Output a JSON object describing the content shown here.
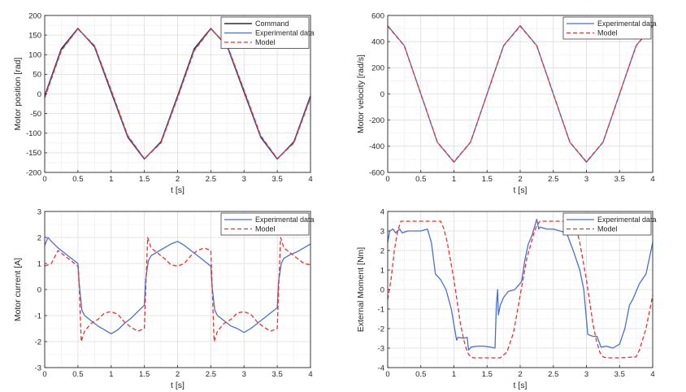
{
  "chart_data": [
    {
      "type": "line",
      "ylabel": "Motor position [rad]",
      "xlabel": "t [s]",
      "xlim": [
        0,
        4
      ],
      "ylim": [
        -200,
        200
      ],
      "xticks": [
        "0",
        "0.5",
        "1",
        "1.5",
        "2",
        "2.5",
        "3",
        "3.5",
        "4"
      ],
      "yticks": [
        "-200",
        "-150",
        "-100",
        "-50",
        "0",
        "50",
        "100",
        "150",
        "200"
      ],
      "grid": true,
      "legend_position": "top-right",
      "series": [
        {
          "name": "Command",
          "color": "#000000",
          "dash": "solid",
          "x": [
            0,
            0.25,
            0.5,
            0.75,
            1.0,
            1.25,
            1.5,
            1.75,
            2.0,
            2.25,
            2.5,
            2.75,
            3.0,
            3.25,
            3.5,
            3.75,
            4.0
          ],
          "y": [
            -5,
            115,
            167,
            120,
            5,
            -110,
            -166,
            -122,
            -5,
            115,
            167,
            120,
            5,
            -110,
            -166,
            -122,
            -5
          ]
        },
        {
          "name": "Experimental data",
          "color": "#4a6fd0",
          "dash": "solid",
          "x": [
            0,
            0.25,
            0.5,
            0.75,
            1.0,
            1.25,
            1.5,
            1.75,
            2.0,
            2.25,
            2.5,
            2.75,
            3.0,
            3.25,
            3.5,
            3.75,
            4.0
          ],
          "y": [
            -8,
            112,
            166,
            122,
            8,
            -108,
            -165,
            -124,
            -8,
            112,
            166,
            122,
            8,
            -108,
            -165,
            -124,
            -8
          ]
        },
        {
          "name": "Model",
          "color": "#e8312a",
          "dash": "dashed",
          "x": [
            0,
            0.25,
            0.5,
            0.75,
            1.0,
            1.25,
            1.5,
            1.75,
            2.0,
            2.25,
            2.5,
            2.75,
            3.0,
            3.25,
            3.5,
            3.75,
            4.0
          ],
          "y": [
            -10,
            110,
            166,
            123,
            10,
            -106,
            -165,
            -125,
            -10,
            110,
            166,
            123,
            10,
            -106,
            -165,
            -125,
            -10
          ]
        }
      ]
    },
    {
      "type": "line",
      "ylabel": "Motor velocity [rad/s]",
      "xlabel": "t [s]",
      "xlim": [
        0,
        4
      ],
      "ylim": [
        -600,
        600
      ],
      "xticks": [
        "0",
        "0.5",
        "1",
        "1.5",
        "2",
        "2.5",
        "3",
        "3.5",
        "4"
      ],
      "yticks": [
        "-600",
        "-400",
        "-200",
        "0",
        "200",
        "400",
        "600"
      ],
      "grid": true,
      "legend_position": "top-right",
      "series": [
        {
          "name": "Experimental data",
          "color": "#4a6fd0",
          "dash": "solid",
          "x": [
            0,
            0.25,
            0.5,
            0.75,
            1.0,
            1.25,
            1.5,
            1.75,
            2.0,
            2.25,
            2.5,
            2.75,
            3.0,
            3.25,
            3.5,
            3.75,
            4.0
          ],
          "y": [
            522,
            370,
            0,
            -370,
            -522,
            -370,
            0,
            370,
            522,
            370,
            0,
            -370,
            -522,
            -370,
            0,
            370,
            522
          ]
        },
        {
          "name": "Model",
          "color": "#e8312a",
          "dash": "dashed",
          "x": [
            0,
            0.25,
            0.5,
            0.75,
            1.0,
            1.25,
            1.5,
            1.75,
            2.0,
            2.25,
            2.5,
            2.75,
            3.0,
            3.25,
            3.5,
            3.75,
            4.0
          ],
          "y": [
            518,
            368,
            0,
            -368,
            -518,
            -368,
            0,
            368,
            518,
            368,
            0,
            -368,
            -518,
            -368,
            0,
            368,
            518
          ]
        }
      ]
    },
    {
      "type": "line",
      "ylabel": "Motor current [A]",
      "xlabel": "t [s]",
      "xlim": [
        0,
        4
      ],
      "ylim": [
        -3,
        3
      ],
      "xticks": [
        "0",
        "0.5",
        "1",
        "1.5",
        "2",
        "2.5",
        "3",
        "3.5",
        "4"
      ],
      "yticks": [
        "-3",
        "-2",
        "-1",
        "0",
        "1",
        "2",
        "3"
      ],
      "grid": true,
      "legend_position": "top-right",
      "series": [
        {
          "name": "Experimental data",
          "color": "#4a6fd0",
          "dash": "solid",
          "x": [
            0,
            0.05,
            0.1,
            0.2,
            0.3,
            0.4,
            0.5,
            0.52,
            0.56,
            0.6,
            0.7,
            0.8,
            0.9,
            1.0,
            1.1,
            1.2,
            1.3,
            1.4,
            1.5,
            1.52,
            1.56,
            1.6,
            1.7,
            1.8,
            1.9,
            2.0,
            2.1,
            2.2,
            2.3,
            2.4,
            2.5,
            2.52,
            2.56,
            2.6,
            2.7,
            2.8,
            2.9,
            3.0,
            3.1,
            3.2,
            3.3,
            3.4,
            3.5,
            3.52,
            3.56,
            3.6,
            3.7,
            3.8,
            3.9,
            4.0
          ],
          "y": [
            1.7,
            2.0,
            1.85,
            1.6,
            1.4,
            1.2,
            1.0,
            0.2,
            -0.8,
            -1.0,
            -1.2,
            -1.4,
            -1.55,
            -1.7,
            -1.55,
            -1.3,
            -1.1,
            -0.85,
            -0.6,
            0.4,
            1.1,
            1.3,
            1.45,
            1.6,
            1.75,
            1.85,
            1.7,
            1.5,
            1.3,
            1.1,
            0.9,
            0.1,
            -0.8,
            -1.0,
            -1.2,
            -1.4,
            -1.5,
            -1.65,
            -1.5,
            -1.3,
            -1.1,
            -0.9,
            -0.7,
            0.3,
            1.0,
            1.2,
            1.35,
            1.45,
            1.6,
            1.75
          ]
        },
        {
          "name": "Model",
          "color": "#e8312a",
          "dash": "dashed",
          "x": [
            0,
            0.1,
            0.2,
            0.3,
            0.4,
            0.5,
            0.52,
            0.55,
            0.6,
            0.7,
            0.8,
            0.9,
            1.0,
            1.1,
            1.2,
            1.3,
            1.4,
            1.5,
            1.52,
            1.55,
            1.6,
            1.7,
            1.8,
            1.9,
            2.0,
            2.1,
            2.2,
            2.3,
            2.4,
            2.5,
            2.52,
            2.55,
            2.6,
            2.7,
            2.8,
            2.9,
            3.0,
            3.1,
            3.2,
            3.3,
            3.4,
            3.5,
            3.52,
            3.55,
            3.6,
            3.7,
            3.8,
            3.9,
            4.0
          ],
          "y": [
            0.9,
            1.0,
            1.5,
            1.3,
            1.1,
            0.9,
            0.1,
            -2.0,
            -1.6,
            -1.3,
            -1.15,
            -0.9,
            -0.85,
            -0.95,
            -1.25,
            -1.45,
            -1.6,
            -1.5,
            0.0,
            2.0,
            1.6,
            1.4,
            1.2,
            0.95,
            0.9,
            1.0,
            1.3,
            1.5,
            1.6,
            1.5,
            0.1,
            -2.0,
            -1.6,
            -1.3,
            -1.15,
            -0.9,
            -0.85,
            -0.95,
            -1.25,
            -1.45,
            -1.6,
            -1.5,
            0.0,
            2.0,
            1.6,
            1.4,
            1.2,
            1.0,
            0.95
          ]
        }
      ]
    },
    {
      "type": "line",
      "ylabel": "External Moment [Nm]",
      "xlabel": "t [s]",
      "xlim": [
        0,
        4
      ],
      "ylim": [
        -4,
        4
      ],
      "xticks": [
        "0",
        "0.5",
        "1",
        "1.5",
        "2",
        "2.5",
        "3",
        "3.5",
        "4"
      ],
      "yticks": [
        "-4",
        "-3",
        "-2",
        "-1",
        "0",
        "1",
        "2",
        "3",
        "4"
      ],
      "grid": true,
      "legend_position": "top-right",
      "series": [
        {
          "name": "Experimental data",
          "color": "#4a6fd0",
          "dash": "solid",
          "x": [
            0,
            0.03,
            0.08,
            0.12,
            0.18,
            0.22,
            0.3,
            0.4,
            0.5,
            0.6,
            0.66,
            0.72,
            0.8,
            0.88,
            0.96,
            1.04,
            1.06,
            1.15,
            1.2,
            1.22,
            1.26,
            1.35,
            1.45,
            1.55,
            1.62,
            1.64,
            1.66,
            1.67,
            1.7,
            1.75,
            1.82,
            1.92,
            2.02,
            2.07,
            2.12,
            2.18,
            2.25,
            2.28,
            2.3,
            2.4,
            2.5,
            2.6,
            2.7,
            2.8,
            2.9,
            2.96,
            3.02,
            3.1,
            3.16,
            3.22,
            3.3,
            3.4,
            3.5,
            3.58,
            3.65,
            3.7,
            3.8,
            3.9,
            4.0
          ],
          "y": [
            2.4,
            3.0,
            3.1,
            2.9,
            3.1,
            2.9,
            3.0,
            3.0,
            3.0,
            3.1,
            2.4,
            0.8,
            0.5,
            0.0,
            -1.0,
            -2.6,
            -2.45,
            -2.5,
            -2.45,
            -3.1,
            -2.95,
            -2.9,
            -2.9,
            -2.95,
            -3.0,
            -0.8,
            0.0,
            -1.3,
            -0.8,
            -0.4,
            -0.1,
            0.0,
            0.4,
            1.5,
            2.3,
            2.8,
            3.6,
            3.1,
            3.2,
            3.1,
            3.1,
            3.0,
            2.9,
            2.0,
            1.0,
            0.0,
            -2.3,
            -2.4,
            -2.4,
            -2.95,
            -2.9,
            -3.0,
            -2.8,
            -2.0,
            -0.8,
            -0.5,
            0.3,
            0.8,
            2.4
          ]
        },
        {
          "name": "Model",
          "color": "#e8312a",
          "dash": "dashed",
          "x": [
            0,
            0.05,
            0.1,
            0.15,
            0.2,
            0.25,
            0.3,
            0.5,
            0.8,
            0.85,
            0.9,
            1.0,
            1.1,
            1.15,
            1.2,
            1.25,
            1.3,
            1.5,
            1.7,
            1.8,
            1.9,
            2.0,
            2.1,
            2.2,
            2.25,
            2.3,
            2.5,
            2.8,
            2.85,
            2.9,
            3.0,
            3.1,
            3.15,
            3.2,
            3.25,
            3.3,
            3.5,
            3.75,
            3.8,
            3.9,
            4.0
          ],
          "y": [
            -0.5,
            0.5,
            2.0,
            3.0,
            3.5,
            3.5,
            3.5,
            3.5,
            3.5,
            3.1,
            2.4,
            0.5,
            -1.8,
            -2.6,
            -3.2,
            -3.45,
            -3.5,
            -3.5,
            -3.5,
            -3.2,
            -2.2,
            -0.3,
            1.6,
            2.8,
            3.3,
            3.5,
            3.5,
            3.5,
            3.1,
            2.4,
            0.5,
            -1.8,
            -2.6,
            -3.2,
            -3.45,
            -3.5,
            -3.5,
            -3.45,
            -3.1,
            -2.0,
            -0.3
          ]
        }
      ]
    }
  ]
}
